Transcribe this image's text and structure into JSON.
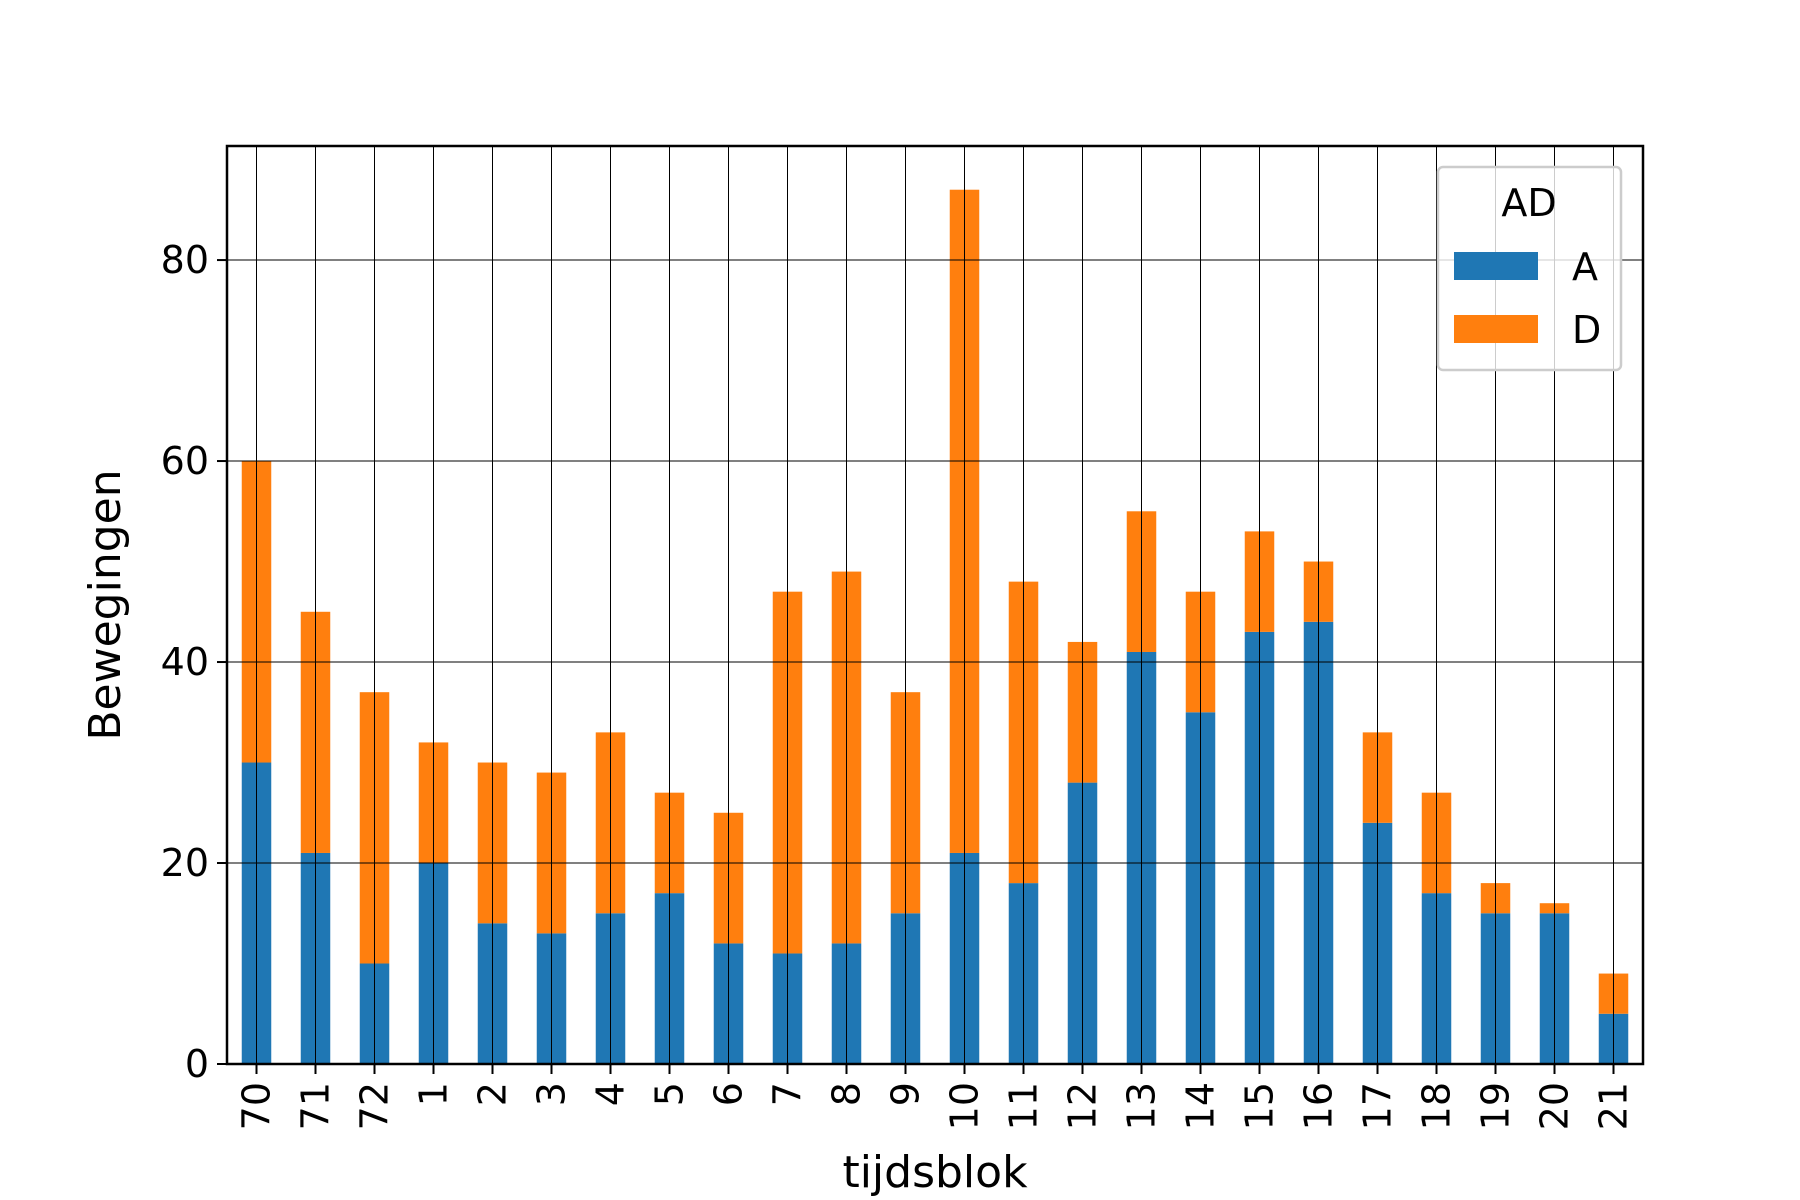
{
  "chart_data": {
    "type": "bar",
    "stacked": true,
    "title": "",
    "xlabel": "tijdsblok",
    "ylabel": "Bewegingen",
    "ylim": [
      0,
      91.35
    ],
    "yticks": [
      0,
      20,
      40,
      60,
      80
    ],
    "grid": true,
    "legend": {
      "title": "AD",
      "placement": "top-right"
    },
    "categories": [
      "70",
      "71",
      "72",
      "1",
      "2",
      "3",
      "4",
      "5",
      "6",
      "7",
      "8",
      "9",
      "10",
      "11",
      "12",
      "13",
      "14",
      "15",
      "16",
      "17",
      "18",
      "19",
      "20",
      "21"
    ],
    "series": [
      {
        "name": "A",
        "color": "#1f77b4",
        "values": [
          30,
          21,
          10,
          20,
          14,
          13,
          15,
          17,
          12,
          11,
          12,
          15,
          21,
          18,
          28,
          41,
          35,
          43,
          44,
          24,
          17,
          15,
          15,
          5
        ]
      },
      {
        "name": "D",
        "color": "#ff7f0e",
        "values": [
          30,
          24,
          27,
          12,
          16,
          16,
          18,
          10,
          13,
          36,
          37,
          22,
          66,
          30,
          14,
          14,
          12,
          10,
          6,
          9,
          10,
          3,
          1,
          4
        ]
      }
    ]
  }
}
